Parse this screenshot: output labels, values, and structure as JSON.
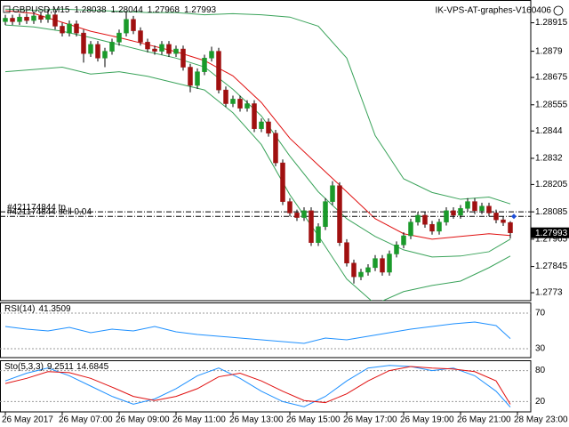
{
  "chart_data": [
    {
      "type": "candlestick",
      "title": "GBPUSD,M15",
      "subtitle": "IK-VPS-AT-graphes-V160406",
      "up_color": "#1a9a2a",
      "down_color": "#a01010",
      "wick_color": "#000000",
      "open": [
        1.2892,
        1.28935,
        1.2892,
        1.2894,
        1.28925,
        1.28945,
        1.2893,
        1.2895,
        1.289,
        1.2887,
        1.2891,
        1.2887,
        1.2878,
        1.2882,
        1.2876,
        1.2879,
        1.2883,
        1.2887,
        1.2893,
        1.2888,
        1.2883,
        1.288,
        1.2879,
        1.2882,
        1.2878,
        1.288,
        1.2872,
        1.2864,
        1.287,
        1.2876,
        1.2879,
        1.2862,
        1.2856,
        1.2858,
        1.2854,
        1.2856,
        1.2845,
        1.2848,
        1.2843,
        1.283,
        1.2813,
        1.2808,
        1.2806,
        1.2809,
        1.2795,
        1.2802,
        1.2813,
        1.282,
        1.2795,
        1.2786,
        1.278,
        1.2782,
        1.2784,
        1.2788,
        1.2782,
        1.279,
        1.2794,
        1.2798,
        1.2804,
        1.2807,
        1.2803,
        1.28,
        1.2804,
        1.2809,
        1.2807,
        1.281,
        1.2813,
        1.2809,
        1.2811,
        1.2808,
        1.2805,
        1.28038
      ],
      "high": [
        1.2895,
        1.2895,
        1.28955,
        1.28955,
        1.2896,
        1.2896,
        1.28975,
        1.28965,
        1.28915,
        1.28925,
        1.28925,
        1.28885,
        1.28835,
        1.28835,
        1.28805,
        1.28845,
        1.28885,
        1.28965,
        1.28945,
        1.28895,
        1.28845,
        1.28815,
        1.28835,
        1.28835,
        1.28815,
        1.28815,
        1.28735,
        1.28715,
        1.28775,
        1.2881,
        1.28805,
        1.28635,
        1.28595,
        1.28595,
        1.28575,
        1.28575,
        1.28495,
        1.28495,
        1.28445,
        1.28315,
        1.28145,
        1.28095,
        1.28105,
        1.28105,
        1.28035,
        1.28145,
        1.2822,
        1.28215,
        1.27965,
        1.27875,
        1.27835,
        1.27855,
        1.27895,
        1.27895,
        1.27915,
        1.27955,
        1.27995,
        1.28055,
        1.28085,
        1.28085,
        1.28045,
        1.28055,
        1.28105,
        1.28105,
        1.28115,
        1.28145,
        1.28145,
        1.28125,
        1.28125,
        1.28095,
        1.28065,
        1.28044
      ],
      "low": [
        1.28905,
        1.28905,
        1.28905,
        1.2891,
        1.2891,
        1.28915,
        1.28915,
        1.28885,
        1.28855,
        1.28855,
        1.28855,
        1.2874,
        1.28765,
        1.28745,
        1.2872,
        1.28775,
        1.28815,
        1.28855,
        1.28865,
        1.28815,
        1.28785,
        1.28775,
        1.28775,
        1.28765,
        1.28765,
        1.28705,
        1.2861,
        1.28625,
        1.28685,
        1.28745,
        1.28605,
        1.28545,
        1.28545,
        1.28525,
        1.28525,
        1.28435,
        1.28435,
        1.28415,
        1.28285,
        1.28115,
        1.28065,
        1.28045,
        1.28045,
        1.27935,
        1.27935,
        1.28005,
        1.28115,
        1.27935,
        1.27845,
        1.2777,
        1.27785,
        1.27805,
        1.27825,
        1.27805,
        1.27805,
        1.27885,
        1.27925,
        1.27965,
        1.28025,
        1.28015,
        1.27985,
        1.27985,
        1.28025,
        1.28055,
        1.28055,
        1.28085,
        1.28075,
        1.28075,
        1.28065,
        1.28035,
        1.28023,
        1.27968
      ],
      "close": [
        1.28935,
        1.2892,
        1.2894,
        1.28925,
        1.28945,
        1.2893,
        1.2895,
        1.289,
        1.2887,
        1.2891,
        1.2887,
        1.2878,
        1.2882,
        1.2876,
        1.2879,
        1.2883,
        1.2887,
        1.2893,
        1.2888,
        1.2883,
        1.288,
        1.2879,
        1.2882,
        1.2878,
        1.288,
        1.2872,
        1.2864,
        1.287,
        1.2876,
        1.2879,
        1.2862,
        1.2856,
        1.2858,
        1.2854,
        1.2856,
        1.2845,
        1.2848,
        1.2843,
        1.283,
        1.2813,
        1.2808,
        1.2806,
        1.2809,
        1.2795,
        1.2802,
        1.2813,
        1.282,
        1.2795,
        1.2786,
        1.278,
        1.2782,
        1.2784,
        1.2788,
        1.2782,
        1.279,
        1.2794,
        1.2798,
        1.2804,
        1.2807,
        1.2803,
        1.28,
        1.2804,
        1.2809,
        1.2807,
        1.281,
        1.2813,
        1.2809,
        1.2811,
        1.2808,
        1.2805,
        1.28038,
        1.27993
      ],
      "xlim": [
        -0.75,
        73.875
      ],
      "xticks": [
        {
          "value": 0,
          "label": "26 May 2017"
        },
        {
          "value": 8,
          "label": "26 May 07:00"
        },
        {
          "value": 16,
          "label": "26 May 09:00"
        },
        {
          "value": 24,
          "label": "26 May 11:00"
        },
        {
          "value": 32,
          "label": "26 May 13:00"
        },
        {
          "value": 40,
          "label": "26 May 15:00"
        },
        {
          "value": 48,
          "label": "26 May 17:00"
        },
        {
          "value": 56,
          "label": "26 May 19:00"
        },
        {
          "value": 64,
          "label": "26 May 21:00"
        },
        {
          "value": 72,
          "label": "28 May 23:00"
        }
      ],
      "ylim": [
        1.27695,
        1.29015
      ],
      "yticks": [
        1.28915,
        1.2879,
        1.28675,
        1.28555,
        1.2844,
        1.2832,
        1.28205,
        1.28085,
        1.27965,
        1.27845,
        1.2773
      ],
      "lines": [
        {
          "color": "#3aa35a",
          "x": [
            0,
            4,
            8,
            12,
            16,
            20,
            24,
            28,
            32,
            36,
            40,
            44,
            48,
            52,
            56,
            60,
            64,
            68,
            71
          ],
          "values": [
            1.28975,
            1.2897,
            1.28975,
            1.2897,
            1.28965,
            1.2896,
            1.2896,
            1.2895,
            1.28955,
            1.2895,
            1.2894,
            1.289,
            1.2876,
            1.2842,
            1.2823,
            1.2817,
            1.2814,
            1.2815,
            1.2812
          ]
        },
        {
          "color": "#3aa35a",
          "x": [
            0,
            4,
            8,
            12,
            16,
            20,
            24,
            28,
            32,
            36,
            40,
            44,
            48,
            52,
            56,
            60,
            64,
            68,
            71
          ],
          "values": [
            1.28905,
            1.28897,
            1.28878,
            1.2885,
            1.28819,
            1.28788,
            1.2876,
            1.28721,
            1.28623,
            1.28506,
            1.2833,
            1.28173,
            1.28055,
            1.27977,
            1.27918,
            1.27887,
            1.27891,
            1.2791,
            1.27965
          ]
        },
        {
          "color": "#3aa35a",
          "x": [
            0,
            4,
            8,
            12,
            16,
            20,
            24,
            28,
            32,
            36,
            40,
            44,
            48,
            52,
            56,
            60,
            64,
            68,
            71
          ],
          "values": [
            1.287,
            1.2871,
            1.2872,
            1.2869,
            1.287,
            1.2868,
            1.2865,
            1.2862,
            1.2852,
            1.2838,
            1.2816,
            1.2798,
            1.2779,
            1.2768,
            1.27735,
            1.27762,
            1.27781,
            1.2784,
            1.27891
          ]
        },
        {
          "color": "#e01010",
          "x": [
            0,
            4,
            8,
            12,
            16,
            20,
            24,
            28,
            32,
            36,
            40,
            44,
            48,
            52,
            56,
            60,
            64,
            68,
            71
          ],
          "values": [
            1.28968,
            1.28956,
            1.28917,
            1.28878,
            1.2885,
            1.28819,
            1.28788,
            1.28749,
            1.28682,
            1.28565,
            1.28408,
            1.2829,
            1.28173,
            1.28055,
            1.27989,
            1.27965,
            1.27977,
            1.27989,
            1.27981
          ]
        }
      ],
      "orders": [
        {
          "label": "#421174844 tp",
          "value": 1.28085
        },
        {
          "label": "#421174844 sell 0.04",
          "value": 1.28065
        }
      ],
      "order_color": "#000000"
    },
    {
      "type": "line",
      "title": "RSI(14)",
      "ylim": [
        20,
        82
      ],
      "yticks": [
        70,
        30
      ],
      "series": [
        {
          "color": "#1e90ff",
          "x": [
            0,
            3,
            6,
            9,
            12,
            15,
            18,
            21,
            24,
            27,
            30,
            33,
            36,
            39,
            42,
            45,
            48,
            51,
            54,
            57,
            60,
            63,
            66,
            69,
            71
          ],
          "values": [
            55,
            52,
            50,
            54,
            48,
            52,
            50,
            55,
            49,
            46,
            44,
            42,
            40,
            38,
            36,
            42,
            40,
            44,
            48,
            52,
            55,
            58,
            60,
            56,
            41.3509
          ]
        }
      ]
    },
    {
      "type": "line",
      "title": "Sto(5,3,3)",
      "ylim": [
        0,
        100
      ],
      "yticks": [
        80,
        20
      ],
      "series": [
        {
          "color": "#1e90ff",
          "x": [
            0,
            3,
            6,
            9,
            12,
            15,
            18,
            21,
            24,
            27,
            30,
            33,
            36,
            39,
            42,
            45,
            48,
            51,
            54,
            57,
            60,
            63,
            66,
            69,
            71
          ],
          "values": [
            60,
            75,
            85,
            70,
            50,
            30,
            15,
            25,
            45,
            70,
            85,
            65,
            40,
            20,
            10,
            30,
            60,
            85,
            90,
            88,
            80,
            85,
            70,
            40,
            9.2511
          ]
        },
        {
          "color": "#e01010",
          "x": [
            0,
            3,
            6,
            9,
            12,
            15,
            18,
            21,
            24,
            27,
            30,
            33,
            36,
            39,
            42,
            45,
            48,
            51,
            54,
            57,
            60,
            63,
            66,
            69,
            71
          ],
          "values": [
            55,
            65,
            78,
            76,
            65,
            48,
            30,
            22,
            30,
            45,
            68,
            75,
            60,
            40,
            22,
            18,
            35,
            60,
            80,
            88,
            85,
            83,
            78,
            60,
            14.6845
          ]
        }
      ]
    }
  ]
}
